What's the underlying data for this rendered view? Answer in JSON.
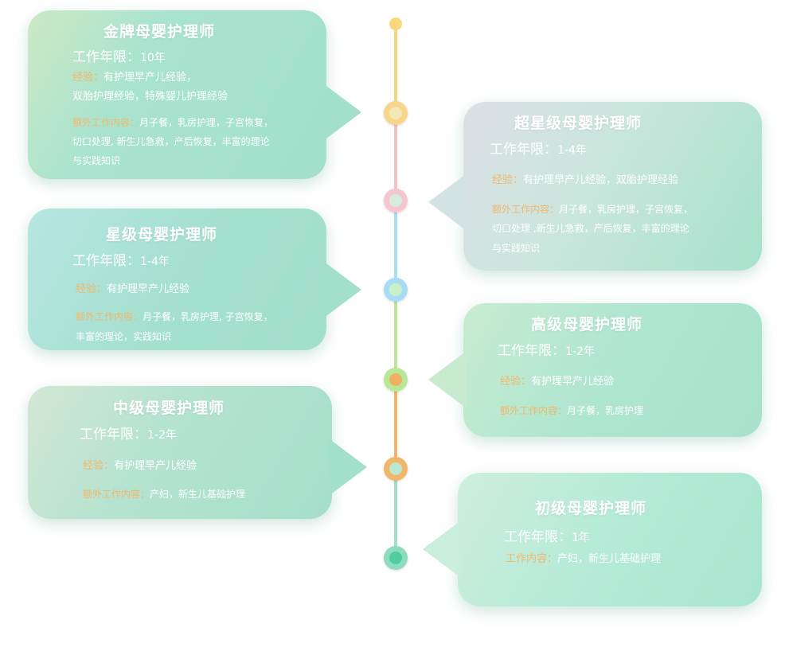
{
  "colors": {
    "label": "#f3b76a",
    "line_top": "#f5d77a",
    "line_pink": "#f2c1c8",
    "line_blue": "#a9ddf2",
    "line_green": "#b9e89a",
    "line_orange": "#f1b56a",
    "line_teal": "#9fe0c7"
  },
  "cards": [
    {
      "id": "gold",
      "title": "金牌母婴护理师",
      "years_label": "工作年限：",
      "years_value": "10年",
      "exp_label": "经验：",
      "exp_text_1": "有护理早产儿经验，",
      "exp_text_2": "双胎护理经验，特殊婴儿护理经验",
      "extra_label": "额外工作内容：",
      "extra_text_1": "月子餐，乳房护理，子宫恢复，",
      "extra_text_2": "切口处理, 新生儿急救，产后恢复，丰富的理论",
      "extra_text_3": "与实践知识"
    },
    {
      "id": "super",
      "title": "超星级母婴护理师",
      "years_label": "工作年限：",
      "years_value": "1-4年",
      "exp_label": "经验：",
      "exp_text_1": "有护理早产儿经验，双胎护理经验",
      "extra_label": "额外工作内容：",
      "extra_text_1": "月子餐，乳房护理，子宫恢复，",
      "extra_text_2": "切口处理 ,新生儿急救，产后恢复，丰富的理论",
      "extra_text_3": "与实践知识"
    },
    {
      "id": "star",
      "title": "星级母婴护理师",
      "years_label": "工作年限：",
      "years_value": "1-4年",
      "exp_label": "经验：",
      "exp_text_1": "有护理早产儿经验",
      "extra_label": "额外工作内容：",
      "extra_text_1": "月子餐，乳房护理, 子宫恢复，",
      "extra_text_2": "丰富的理论，实践知识"
    },
    {
      "id": "senior",
      "title": "高级母婴护理师",
      "years_label": "工作年限：",
      "years_value": "1-2年",
      "exp_label": "经验：",
      "exp_text_1": "有护理早产儿经验",
      "extra_label": "额外工作内容：",
      "extra_text_1": "月子餐，乳房护理"
    },
    {
      "id": "mid",
      "title": "中级母婴护理师",
      "years_label": "工作年限：",
      "years_value": "1-2年",
      "exp_label": "经验：",
      "exp_text_1": "有护理早产儿经验",
      "extra_label": "额外工作内容：",
      "extra_text_1": "产妇，新生儿基础护理"
    },
    {
      "id": "junior",
      "title": "初级母婴护理师",
      "years_label": "工作年限：",
      "years_value": "1年",
      "extra_label": "工作内容：",
      "extra_text_1": "产妇，新生儿基础护理"
    }
  ]
}
